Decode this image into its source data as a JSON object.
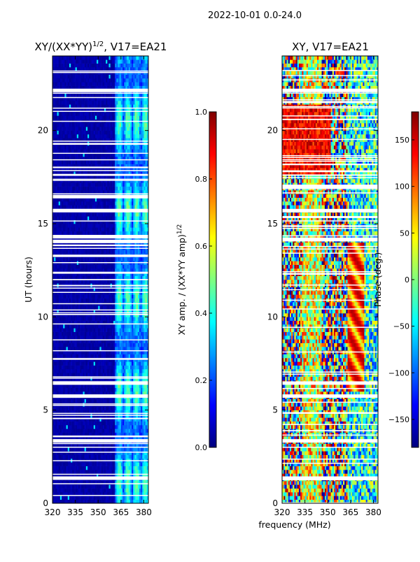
{
  "suptitle": "2022-10-01 0.0-24.0",
  "colors": {
    "background": "#000080",
    "gap": "#ffffff",
    "jet": [
      "#00007f",
      "#0000ff",
      "#007fff",
      "#00ffff",
      "#7fff7f",
      "#ffff00",
      "#ff7f00",
      "#ff0000",
      "#7f0000"
    ]
  },
  "chart_data": [
    {
      "type": "heatmap",
      "title_main": "XY/(XX*YY)",
      "title_sup": "1/2",
      "title_rest": ", V17=EA21",
      "xlabel": "",
      "ylabel": "UT (hours)",
      "xlim": [
        320,
        383
      ],
      "ylim": [
        0,
        24
      ],
      "xticks": [
        320,
        335,
        350,
        365,
        380
      ],
      "yticks": [
        0,
        5,
        10,
        15,
        20
      ],
      "colorbar": {
        "label_main": "XY amp. / (XX*YY amp)",
        "label_sup": "1/2",
        "range": [
          0.0,
          1.0
        ],
        "ticks": [
          "0.0",
          "0.2",
          "0.4",
          "0.6",
          "0.8",
          "1.0"
        ],
        "tick_values": [
          0.0,
          0.2,
          0.4,
          0.6,
          0.8,
          1.0
        ]
      },
      "gap_hours_thick": [
        22.15,
        14.05,
        14.3,
        15.7,
        1.35,
        3.35,
        6.45,
        5.75,
        16.45
      ],
      "description_values": "mostly near 0 below 362 MHz; bands of 0.2-0.5 between 362-382 MHz"
    },
    {
      "type": "heatmap",
      "title_main": "XY, V17=EA21",
      "xlabel": "frequency (MHz)",
      "ylabel": "",
      "xlim": [
        320,
        383
      ],
      "ylim": [
        0,
        24
      ],
      "xticks": [
        320,
        335,
        350,
        365,
        380
      ],
      "yticks": [
        0,
        5,
        10,
        15,
        20
      ],
      "colorbar": {
        "label_main": "Phase (deg.)",
        "range": [
          -180,
          180
        ],
        "ticks": [
          "−150",
          "−100",
          "−50",
          "0",
          "50",
          "100",
          "150"
        ],
        "tick_values": [
          -150,
          -100,
          -50,
          0,
          50,
          100,
          150
        ]
      },
      "gap_hours_thick": [
        14.15,
        17.0,
        22.15,
        15.7,
        1.35,
        3.35,
        6.45,
        5.75
      ],
      "description_values": "noisy phase -180..180; coherent red/orange blobs near 18-21 h at 320-350 MHz"
    }
  ]
}
